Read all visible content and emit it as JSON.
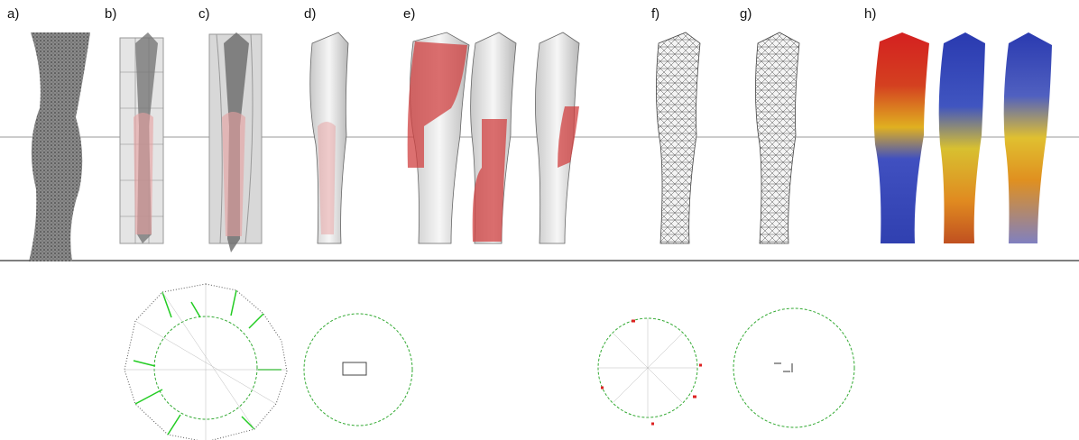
{
  "panel_labels": [
    "a)",
    "b)",
    "c)",
    "d)",
    "e)",
    "f)",
    "g)",
    "h)"
  ]
}
